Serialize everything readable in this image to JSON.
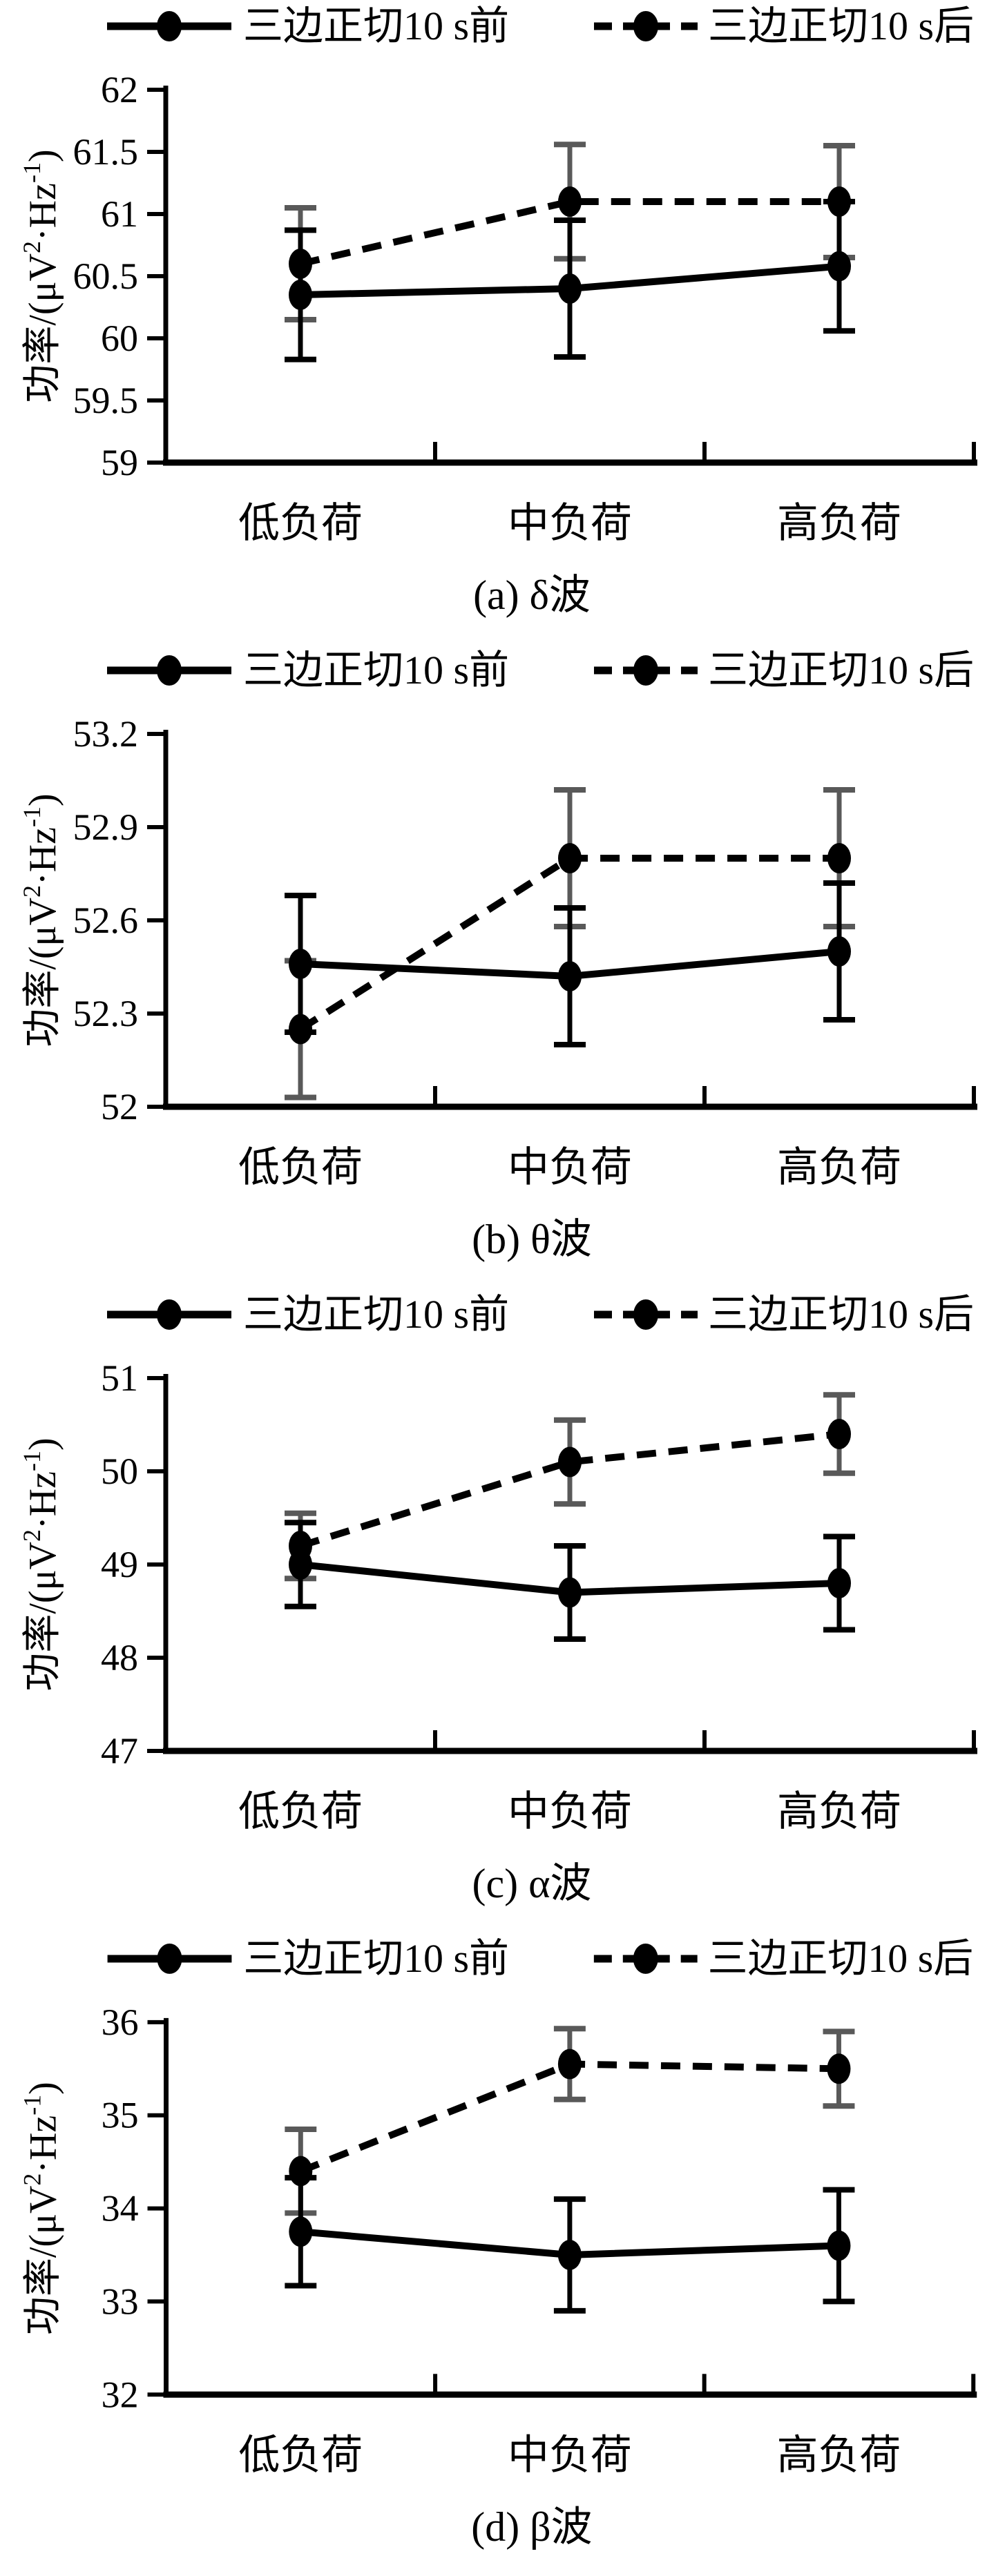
{
  "figure": {
    "background": "#ffffff",
    "line_color": "#000000",
    "before_errbar_color": "#000000",
    "after_errbar_color": "#595959",
    "legend": {
      "before": "三边正切10 s前",
      "after": "三边正切10 s后"
    },
    "ylabel": "功率/(μV²·Hz⁻¹)",
    "ylabel_parts": [
      {
        "t": "功率/(μV"
      },
      {
        "t": "2",
        "sup": true
      },
      {
        "t": "·Hz"
      },
      {
        "t": "-1",
        "sup": true
      },
      {
        "t": ")"
      }
    ]
  },
  "chart_data": [
    {
      "type": "line",
      "panel": "a",
      "caption": "(a) δ波",
      "ylabel": "功率/(μV²·Hz⁻¹)",
      "categories": [
        "低负荷",
        "中负荷",
        "高负荷"
      ],
      "ylim": [
        59,
        62
      ],
      "yticks": [
        "59",
        "59.5",
        "60",
        "60.5",
        "61",
        "61.5",
        "62"
      ],
      "grid": false,
      "legend_position": "top",
      "series": [
        {
          "name": "三边正切10 s前",
          "line": "solid",
          "values": [
            60.35,
            60.4,
            60.58
          ],
          "err": [
            0.52,
            0.55,
            0.52
          ]
        },
        {
          "name": "三边正切10 s后",
          "line": "dashed",
          "values": [
            60.6,
            61.1,
            61.1
          ],
          "err": [
            0.45,
            0.46,
            0.45
          ]
        }
      ]
    },
    {
      "type": "line",
      "panel": "b",
      "caption": "(b) θ波",
      "ylabel": "功率/(μV²·Hz⁻¹)",
      "categories": [
        "低负荷",
        "中负荷",
        "高负荷"
      ],
      "ylim": [
        52,
        53.2
      ],
      "yticks": [
        "52",
        "52.3",
        "52.6",
        "52.9",
        "53.2"
      ],
      "grid": false,
      "legend_position": "top",
      "series": [
        {
          "name": "三边正切10 s前",
          "line": "solid",
          "values": [
            52.46,
            52.42,
            52.5
          ],
          "err": [
            0.22,
            0.22,
            0.22
          ]
        },
        {
          "name": "三边正切10 s后",
          "line": "dashed",
          "values": [
            52.25,
            52.8,
            52.8
          ],
          "err": [
            0.22,
            0.22,
            0.22
          ]
        }
      ]
    },
    {
      "type": "line",
      "panel": "c",
      "caption": "(c) α波",
      "ylabel": "功率/(μV²·Hz⁻¹)",
      "categories": [
        "低负荷",
        "中负荷",
        "高负荷"
      ],
      "ylim": [
        47,
        51
      ],
      "yticks": [
        "47",
        "48",
        "49",
        "50",
        "51"
      ],
      "grid": false,
      "legend_position": "top",
      "series": [
        {
          "name": "三边正切10 s前",
          "line": "solid",
          "values": [
            49.0,
            48.7,
            48.8
          ],
          "err": [
            0.45,
            0.5,
            0.5
          ]
        },
        {
          "name": "三边正切10 s后",
          "line": "dashed",
          "values": [
            49.2,
            50.1,
            50.4
          ],
          "err": [
            0.35,
            0.45,
            0.42
          ]
        }
      ]
    },
    {
      "type": "line",
      "panel": "d",
      "caption": "(d) β波",
      "ylabel": "功率/(μV²·Hz⁻¹)",
      "categories": [
        "低负荷",
        "中负荷",
        "高负荷"
      ],
      "ylim": [
        32,
        36
      ],
      "yticks": [
        "32",
        "33",
        "34",
        "35",
        "36"
      ],
      "grid": false,
      "legend_position": "top",
      "series": [
        {
          "name": "三边正切10 s前",
          "line": "solid",
          "values": [
            33.75,
            33.5,
            33.6
          ],
          "err": [
            0.58,
            0.6,
            0.6
          ]
        },
        {
          "name": "三边正切10 s后",
          "line": "dashed",
          "values": [
            34.4,
            35.55,
            35.5
          ],
          "err": [
            0.45,
            0.38,
            0.4
          ]
        }
      ]
    }
  ]
}
